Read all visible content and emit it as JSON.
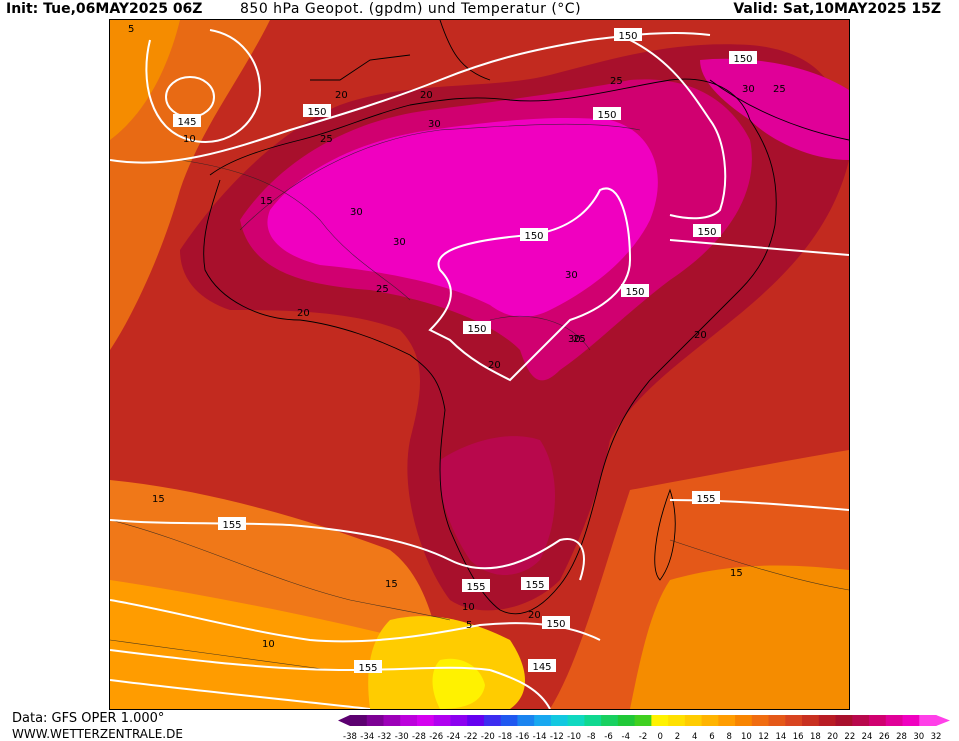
{
  "header": {
    "init": "Init: Tue,06MAY2025 06Z",
    "title": "850 hPa Geopot. (gpdm) und Temperatur (°C)",
    "valid": "Valid: Sat,10MAY2025 15Z"
  },
  "footer": {
    "data_source": "Data: GFS OPER 1.000°",
    "website": "WWW.WETTERZENTRALE.DE"
  },
  "colorbar": {
    "ticks": [
      "-38",
      "-34",
      "-32",
      "-30",
      "-28",
      "-26",
      "-24",
      "-22",
      "-20",
      "-18",
      "-16",
      "-14",
      "-12",
      "-10",
      "-8",
      "-6",
      "-4",
      "-2",
      "0",
      "2",
      "4",
      "6",
      "8",
      "10",
      "12",
      "14",
      "16",
      "18",
      "20",
      "22",
      "24",
      "26",
      "28",
      "30",
      "32"
    ],
    "colors": [
      "#5c0070",
      "#7c0094",
      "#9c00b8",
      "#bc00dc",
      "#d400f0",
      "#b000f0",
      "#8c00f0",
      "#6400f0",
      "#3c2cf0",
      "#1f58f0",
      "#1a84f0",
      "#18a8f0",
      "#12c8e0",
      "#10d8c0",
      "#10d890",
      "#18d060",
      "#20c838",
      "#40d020",
      "#fff200",
      "#ffe000",
      "#ffcc00",
      "#ffb400",
      "#ff9c00",
      "#f88400",
      "#f06c10",
      "#e45818",
      "#d84420",
      "#c83020",
      "#b81c24",
      "#a8102c",
      "#b8084c",
      "#d00070",
      "#e00098",
      "#f000c0",
      "#ff40e8"
    ]
  },
  "map": {
    "geopotential_labels": [
      "150",
      "150",
      "150",
      "150",
      "150",
      "150",
      "150",
      "150",
      "145",
      "145",
      "155",
      "155",
      "155",
      "155",
      "155",
      "150",
      "155"
    ],
    "temperature_labels": [
      "5",
      "10",
      "15",
      "20",
      "20",
      "25",
      "25",
      "30",
      "30",
      "30",
      "30",
      "25",
      "20",
      "20",
      "25",
      "30",
      "15",
      "15",
      "10",
      "10",
      "5",
      "15",
      "20",
      "20",
      "25",
      "30"
    ]
  }
}
